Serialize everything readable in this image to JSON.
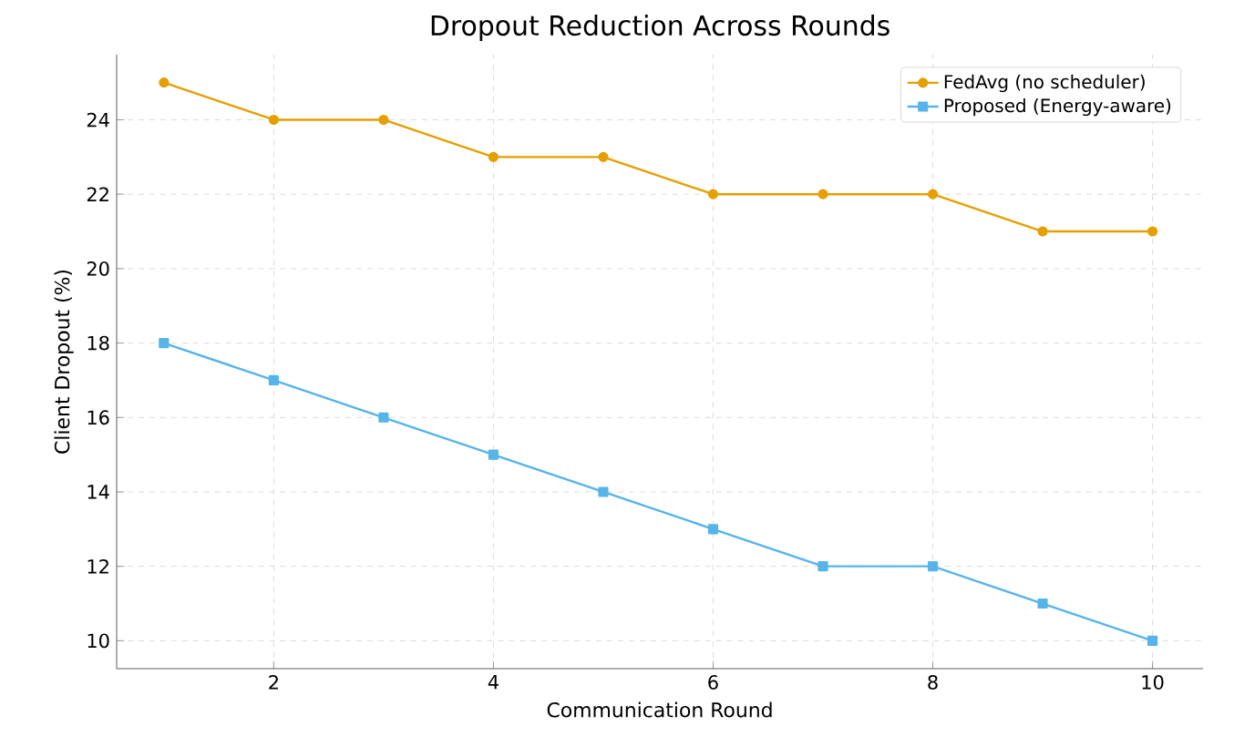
{
  "chart_data": {
    "type": "line",
    "title": "Dropout Reduction Across Rounds",
    "xlabel": "Communication Round",
    "ylabel": "Client Dropout (%)",
    "x": [
      1,
      2,
      3,
      4,
      5,
      6,
      7,
      8,
      9,
      10
    ],
    "series": [
      {
        "name": "FedAvg (no scheduler)",
        "color": "#e69f00",
        "marker": "circle",
        "values": [
          25,
          24,
          24,
          23,
          23,
          22,
          22,
          22,
          21,
          21
        ]
      },
      {
        "name": "Proposed (Energy-aware)",
        "color": "#56b4e9",
        "marker": "square",
        "values": [
          18,
          17,
          16,
          15,
          14,
          13,
          12,
          12,
          11,
          10
        ]
      }
    ],
    "xlim": [
      0.57,
      10.46
    ],
    "ylim": [
      9.25,
      25.75
    ],
    "xticks": [
      2,
      4,
      6,
      8,
      10
    ],
    "yticks": [
      10,
      12,
      14,
      16,
      18,
      20,
      22,
      24
    ],
    "grid": true,
    "legend": "top right",
    "line_style": "solid"
  }
}
